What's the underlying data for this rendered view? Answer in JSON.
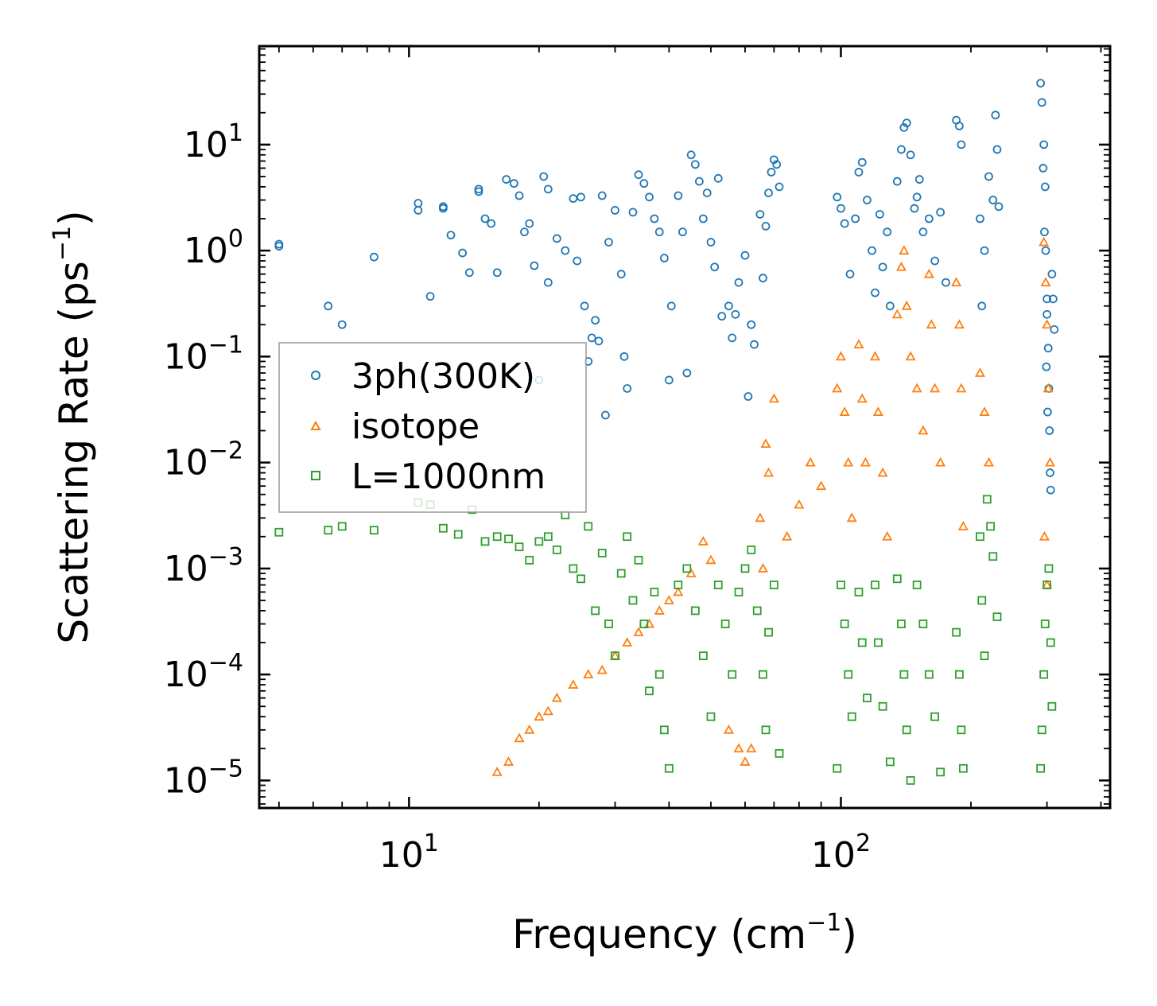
{
  "chart_data": {
    "type": "scatter",
    "xscale": "log",
    "yscale": "log",
    "xlim": [
      4.5,
      420
    ],
    "ylim": [
      5.5e-06,
      85
    ],
    "xlabel": "Frequency (cm",
    "xlabel_sup": "−1",
    "xlabel_end": ")",
    "ylabel": "Scattering Rate (ps",
    "ylabel_sup": "−1",
    "ylabel_end": ")",
    "x_ticks": [
      {
        "base": "10",
        "exp": "1",
        "value": 10
      },
      {
        "base": "10",
        "exp": "2",
        "value": 100
      }
    ],
    "y_ticks": [
      {
        "base": "10",
        "exp": "1",
        "value": 10
      },
      {
        "base": "10",
        "exp": "0",
        "value": 1
      },
      {
        "base": "10",
        "exp": "−1",
        "value": 0.1
      },
      {
        "base": "10",
        "exp": "−2",
        "value": 0.01
      },
      {
        "base": "10",
        "exp": "−3",
        "value": 0.001
      },
      {
        "base": "10",
        "exp": "−4",
        "value": 0.0001
      },
      {
        "base": "10",
        "exp": "−5",
        "value": 1e-05
      }
    ],
    "legend_position": "center-left",
    "series": [
      {
        "name": "3ph(300K)",
        "marker": "circle",
        "color": "#1f77b4",
        "points": [
          [
            5.0,
            1.1
          ],
          [
            5.0,
            1.15
          ],
          [
            6.5,
            0.3
          ],
          [
            7.0,
            0.2
          ],
          [
            8.3,
            0.87
          ],
          [
            10.5,
            2.8
          ],
          [
            10.5,
            2.4
          ],
          [
            11.2,
            0.37
          ],
          [
            12.0,
            2.6
          ],
          [
            12.0,
            2.5
          ],
          [
            12.5,
            1.4
          ],
          [
            13.3,
            0.95
          ],
          [
            13.8,
            0.62
          ],
          [
            14.5,
            3.8
          ],
          [
            14.5,
            3.6
          ],
          [
            15.0,
            2.0
          ],
          [
            15.5,
            1.8
          ],
          [
            16.0,
            0.62
          ],
          [
            16.8,
            4.7
          ],
          [
            17.5,
            4.3
          ],
          [
            18.0,
            3.3
          ],
          [
            18.5,
            1.5
          ],
          [
            19.0,
            1.8
          ],
          [
            19.5,
            0.72
          ],
          [
            20.0,
            0.06
          ],
          [
            20.5,
            5.0
          ],
          [
            21.0,
            3.8
          ],
          [
            21.0,
            0.5
          ],
          [
            22.0,
            1.3
          ],
          [
            23.0,
            1.0
          ],
          [
            24.0,
            3.1
          ],
          [
            24.5,
            0.8
          ],
          [
            25.0,
            3.2
          ],
          [
            25.5,
            0.3
          ],
          [
            26.0,
            0.09
          ],
          [
            26.5,
            0.15
          ],
          [
            27.0,
            0.22
          ],
          [
            27.5,
            0.14
          ],
          [
            28.0,
            3.3
          ],
          [
            28.5,
            0.028
          ],
          [
            29.0,
            1.2
          ],
          [
            30.0,
            2.4
          ],
          [
            31.0,
            0.6
          ],
          [
            31.5,
            0.1
          ],
          [
            32.0,
            0.05
          ],
          [
            33.0,
            2.3
          ],
          [
            34.0,
            5.2
          ],
          [
            35.0,
            4.3
          ],
          [
            36.0,
            3.2
          ],
          [
            37.0,
            2.0
          ],
          [
            38.0,
            1.5
          ],
          [
            39.0,
            0.85
          ],
          [
            40.0,
            0.06
          ],
          [
            40.5,
            0.3
          ],
          [
            42.0,
            3.3
          ],
          [
            43.0,
            1.5
          ],
          [
            44.0,
            0.07
          ],
          [
            45.0,
            8.0
          ],
          [
            46.0,
            6.5
          ],
          [
            47.0,
            4.5
          ],
          [
            48.0,
            2.0
          ],
          [
            49.0,
            3.5
          ],
          [
            50.0,
            1.2
          ],
          [
            51.0,
            0.7
          ],
          [
            52.0,
            4.8
          ],
          [
            53.0,
            0.24
          ],
          [
            55.0,
            0.3
          ],
          [
            56.0,
            0.15
          ],
          [
            57.0,
            0.25
          ],
          [
            58.0,
            0.5
          ],
          [
            60.0,
            0.9
          ],
          [
            61.0,
            0.042
          ],
          [
            62.0,
            0.2
          ],
          [
            63.0,
            0.13
          ],
          [
            65.0,
            2.2
          ],
          [
            66.0,
            0.55
          ],
          [
            67.0,
            1.7
          ],
          [
            68.0,
            3.5
          ],
          [
            69.0,
            5.5
          ],
          [
            70.0,
            7.2
          ],
          [
            71.0,
            6.5
          ],
          [
            72.0,
            4.0
          ],
          [
            98.0,
            3.2
          ],
          [
            100.0,
            2.5
          ],
          [
            102.0,
            1.8
          ],
          [
            105.0,
            0.6
          ],
          [
            108.0,
            2.0
          ],
          [
            110.0,
            5.5
          ],
          [
            112.0,
            6.8
          ],
          [
            115.0,
            3.0
          ],
          [
            118.0,
            1.0
          ],
          [
            120.0,
            0.4
          ],
          [
            123.0,
            2.2
          ],
          [
            125.0,
            0.7
          ],
          [
            128.0,
            1.5
          ],
          [
            130.0,
            0.3
          ],
          [
            135.0,
            4.5
          ],
          [
            138.0,
            9.0
          ],
          [
            140.0,
            14.5
          ],
          [
            142.0,
            16.0
          ],
          [
            145.0,
            8.0
          ],
          [
            148.0,
            2.5
          ],
          [
            150.0,
            3.2
          ],
          [
            152.0,
            4.7
          ],
          [
            155.0,
            1.5
          ],
          [
            160.0,
            2.0
          ],
          [
            165.0,
            0.8
          ],
          [
            170.0,
            2.3
          ],
          [
            175.0,
            0.5
          ],
          [
            185.0,
            17.0
          ],
          [
            188.0,
            15.0
          ],
          [
            190.0,
            10.0
          ],
          [
            210.0,
            2.0
          ],
          [
            212.0,
            0.3
          ],
          [
            215.0,
            1.0
          ],
          [
            220.0,
            5.0
          ],
          [
            225.0,
            3.0
          ],
          [
            228.0,
            19.0
          ],
          [
            230.0,
            9.0
          ],
          [
            232.0,
            2.6
          ],
          [
            290.0,
            38.0
          ],
          [
            292.0,
            25.0
          ],
          [
            295.0,
            10.0
          ],
          [
            297.0,
            4.0
          ],
          [
            298.0,
            1.0
          ],
          [
            300.0,
            0.35
          ],
          [
            302.0,
            0.12
          ],
          [
            303.0,
            0.05
          ],
          [
            304.0,
            0.02
          ],
          [
            305.0,
            0.008
          ],
          [
            306.0,
            0.0055
          ],
          [
            310.0,
            0.35
          ],
          [
            312.0,
            0.18
          ],
          [
            300.0,
            0.25
          ],
          [
            296.0,
            1.5
          ],
          [
            294.0,
            6.0
          ],
          [
            308.0,
            0.6
          ],
          [
            299.0,
            0.08
          ],
          [
            301.0,
            0.03
          ]
        ]
      },
      {
        "name": "isotope",
        "marker": "triangle",
        "color": "#ff7f0e",
        "points": [
          [
            16.0,
            1.2e-05
          ],
          [
            17.0,
            1.5e-05
          ],
          [
            18.0,
            2.5e-05
          ],
          [
            19.0,
            3e-05
          ],
          [
            20.0,
            4e-05
          ],
          [
            21.0,
            4.5e-05
          ],
          [
            22.0,
            6e-05
          ],
          [
            24.0,
            8e-05
          ],
          [
            26.0,
            0.0001
          ],
          [
            28.0,
            0.00011
          ],
          [
            30.0,
            0.00015
          ],
          [
            32.0,
            0.0002
          ],
          [
            34.0,
            0.00025
          ],
          [
            36.0,
            0.0003
          ],
          [
            38.0,
            0.0004
          ],
          [
            40.0,
            0.0005
          ],
          [
            42.0,
            0.0006
          ],
          [
            45.0,
            0.0009
          ],
          [
            48.0,
            0.0018
          ],
          [
            50.0,
            0.0012
          ],
          [
            55.0,
            3e-05
          ],
          [
            58.0,
            2e-05
          ],
          [
            60.0,
            1.5e-05
          ],
          [
            62.0,
            2e-05
          ],
          [
            65.0,
            0.003
          ],
          [
            67.0,
            0.015
          ],
          [
            70.0,
            0.04
          ],
          [
            68.0,
            0.008
          ],
          [
            66.0,
            0.001
          ],
          [
            98.0,
            0.05
          ],
          [
            100.0,
            0.1
          ],
          [
            102.0,
            0.03
          ],
          [
            104.0,
            0.01
          ],
          [
            106.0,
            0.003
          ],
          [
            110.0,
            0.13
          ],
          [
            112.0,
            0.04
          ],
          [
            114.0,
            0.01
          ],
          [
            120.0,
            0.1
          ],
          [
            122.0,
            0.03
          ],
          [
            125.0,
            0.008
          ],
          [
            128.0,
            0.002
          ],
          [
            135.0,
            0.25
          ],
          [
            138.0,
            0.7
          ],
          [
            140.0,
            1.0
          ],
          [
            142.0,
            0.3
          ],
          [
            145.0,
            0.1
          ],
          [
            150.0,
            0.05
          ],
          [
            155.0,
            0.02
          ],
          [
            160.0,
            0.6
          ],
          [
            162.0,
            0.2
          ],
          [
            165.0,
            0.05
          ],
          [
            170.0,
            0.01
          ],
          [
            185.0,
            0.5
          ],
          [
            188.0,
            0.2
          ],
          [
            190.0,
            0.05
          ],
          [
            192.0,
            0.0025
          ],
          [
            210.0,
            0.07
          ],
          [
            215.0,
            0.03
          ],
          [
            220.0,
            0.01
          ],
          [
            295.0,
            1.2
          ],
          [
            298.0,
            0.5
          ],
          [
            300.0,
            0.2
          ],
          [
            302.0,
            0.05
          ],
          [
            305.0,
            0.01
          ],
          [
            296.0,
            0.002
          ],
          [
            300.0,
            0.0007
          ],
          [
            85.0,
            0.01
          ],
          [
            90.0,
            0.006
          ],
          [
            75.0,
            0.002
          ],
          [
            80.0,
            0.004
          ]
        ]
      },
      {
        "name": "L=1000nm",
        "marker": "square",
        "color": "#2ca02c",
        "points": [
          [
            5.0,
            0.0022
          ],
          [
            6.5,
            0.0023
          ],
          [
            7.0,
            0.0025
          ],
          [
            8.3,
            0.0023
          ],
          [
            10.5,
            0.0042
          ],
          [
            11.2,
            0.004
          ],
          [
            12.0,
            0.0024
          ],
          [
            13.0,
            0.0021
          ],
          [
            14.0,
            0.0036
          ],
          [
            15.0,
            0.0018
          ],
          [
            16.0,
            0.002
          ],
          [
            17.0,
            0.0019
          ],
          [
            18.0,
            0.0016
          ],
          [
            19.0,
            0.0012
          ],
          [
            20.0,
            0.0018
          ],
          [
            21.0,
            0.002
          ],
          [
            22.0,
            0.0015
          ],
          [
            23.0,
            0.0032
          ],
          [
            24.0,
            0.001
          ],
          [
            25.0,
            0.0008
          ],
          [
            26.0,
            0.0025
          ],
          [
            27.0,
            0.0004
          ],
          [
            28.0,
            0.0014
          ],
          [
            29.0,
            0.0003
          ],
          [
            30.0,
            0.00015
          ],
          [
            31.0,
            0.0009
          ],
          [
            32.0,
            0.002
          ],
          [
            33.0,
            0.0005
          ],
          [
            34.0,
            0.0012
          ],
          [
            35.0,
            0.0003
          ],
          [
            36.0,
            7e-05
          ],
          [
            37.0,
            0.0006
          ],
          [
            38.0,
            0.0001
          ],
          [
            39.0,
            3e-05
          ],
          [
            40.0,
            1.3e-05
          ],
          [
            42.0,
            0.0007
          ],
          [
            44.0,
            0.001
          ],
          [
            46.0,
            0.0004
          ],
          [
            48.0,
            0.00015
          ],
          [
            50.0,
            4e-05
          ],
          [
            52.0,
            0.0007
          ],
          [
            54.0,
            0.0003
          ],
          [
            56.0,
            0.0001
          ],
          [
            58.0,
            0.0006
          ],
          [
            60.0,
            0.001
          ],
          [
            62.0,
            0.0015
          ],
          [
            64.0,
            0.0004
          ],
          [
            66.0,
            0.0001
          ],
          [
            67.0,
            3e-05
          ],
          [
            68.0,
            0.00025
          ],
          [
            70.0,
            0.0007
          ],
          [
            72.0,
            1.8e-05
          ],
          [
            98.0,
            1.3e-05
          ],
          [
            100.0,
            0.0007
          ],
          [
            102.0,
            0.0003
          ],
          [
            104.0,
            0.0001
          ],
          [
            106.0,
            4e-05
          ],
          [
            110.0,
            0.0006
          ],
          [
            112.0,
            0.0002
          ],
          [
            115.0,
            6e-05
          ],
          [
            120.0,
            0.0007
          ],
          [
            122.0,
            0.0002
          ],
          [
            125.0,
            5e-05
          ],
          [
            130.0,
            1.5e-05
          ],
          [
            135.0,
            0.0008
          ],
          [
            138.0,
            0.0003
          ],
          [
            140.0,
            0.0001
          ],
          [
            142.0,
            3e-05
          ],
          [
            145.0,
            1e-05
          ],
          [
            150.0,
            0.0007
          ],
          [
            155.0,
            0.0003
          ],
          [
            160.0,
            0.0001
          ],
          [
            165.0,
            4e-05
          ],
          [
            170.0,
            1.2e-05
          ],
          [
            185.0,
            0.00025
          ],
          [
            188.0,
            0.0001
          ],
          [
            190.0,
            3e-05
          ],
          [
            192.0,
            1.3e-05
          ],
          [
            210.0,
            0.002
          ],
          [
            212.0,
            0.0005
          ],
          [
            215.0,
            0.00015
          ],
          [
            218.0,
            0.0045
          ],
          [
            222.0,
            0.0025
          ],
          [
            225.0,
            0.0013
          ],
          [
            230.0,
            0.00035
          ],
          [
            290.0,
            1.3e-05
          ],
          [
            292.0,
            3e-05
          ],
          [
            295.0,
            0.0001
          ],
          [
            297.0,
            0.0003
          ],
          [
            300.0,
            0.0007
          ],
          [
            303.0,
            0.001
          ],
          [
            306.0,
            0.0002
          ],
          [
            308.0,
            5e-05
          ]
        ]
      }
    ]
  }
}
